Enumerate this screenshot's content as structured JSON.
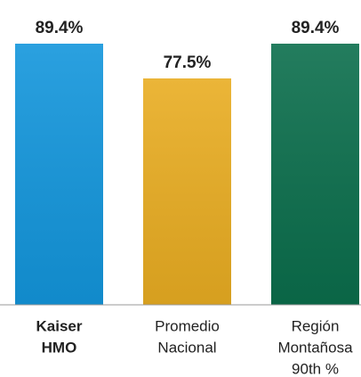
{
  "chart_data": {
    "type": "bar",
    "categories": [
      [
        "Kaiser",
        "HMO"
      ],
      [
        "Promedio",
        "Nacional"
      ],
      [
        "Región",
        "Montañosa",
        "90th %"
      ]
    ],
    "category_bold": [
      true,
      false,
      false
    ],
    "values": [
      89.4,
      77.5,
      89.4
    ],
    "value_labels": [
      "89.4%",
      "77.5%",
      "89.4%"
    ],
    "colors": [
      "#1396dc",
      "#e9ad22",
      "#0b6e4c"
    ]
  }
}
